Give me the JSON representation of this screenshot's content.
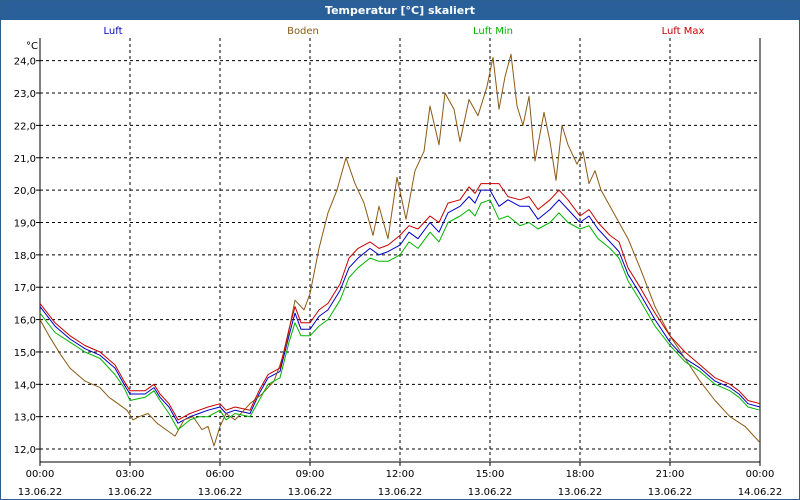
{
  "window": {
    "title": "Temperatur [°C] skaliert"
  },
  "chart_data": {
    "type": "line",
    "title": "Temperatur [°C] skaliert",
    "ylabel": "°C",
    "xlabel": "",
    "ylim": [
      11.6,
      24.7
    ],
    "xlim_hours": [
      0,
      24
    ],
    "grid": true,
    "y_ticks": [
      "12,0",
      "13,0",
      "14,0",
      "15,0",
      "16,0",
      "17,0",
      "18,0",
      "19,0",
      "20,0",
      "21,0",
      "22,0",
      "23,0",
      "24,0"
    ],
    "y_tick_values": [
      12,
      13,
      14,
      15,
      16,
      17,
      18,
      19,
      20,
      21,
      22,
      23,
      24
    ],
    "x_ticks": [
      {
        "hour": 0,
        "time": "00:00",
        "date": "13.06.22"
      },
      {
        "hour": 3,
        "time": "03:00",
        "date": "13.06.22"
      },
      {
        "hour": 6,
        "time": "06:00",
        "date": "13.06.22"
      },
      {
        "hour": 9,
        "time": "09:00",
        "date": "13.06.22"
      },
      {
        "hour": 12,
        "time": "12:00",
        "date": "13.06.22"
      },
      {
        "hour": 15,
        "time": "15:00",
        "date": "13.06.22"
      },
      {
        "hour": 18,
        "time": "18:00",
        "date": "13.06.22"
      },
      {
        "hour": 21,
        "time": "21:00",
        "date": "13.06.22"
      },
      {
        "hour": 24,
        "time": "00:00",
        "date": "14.06.22"
      }
    ],
    "series": [
      {
        "name": "Luft",
        "color": "#0000c8",
        "points": [
          [
            0,
            16.4
          ],
          [
            0.5,
            15.8
          ],
          [
            1,
            15.4
          ],
          [
            1.5,
            15.1
          ],
          [
            2,
            14.9
          ],
          [
            2.5,
            14.5
          ],
          [
            2.8,
            14.0
          ],
          [
            3,
            13.7
          ],
          [
            3.5,
            13.7
          ],
          [
            3.8,
            13.9
          ],
          [
            4,
            13.6
          ],
          [
            4.3,
            13.3
          ],
          [
            4.6,
            12.8
          ],
          [
            5,
            13.0
          ],
          [
            5.3,
            13.1
          ],
          [
            5.6,
            13.2
          ],
          [
            6,
            13.3
          ],
          [
            6.2,
            13.1
          ],
          [
            6.5,
            13.2
          ],
          [
            7,
            13.1
          ],
          [
            7.3,
            13.7
          ],
          [
            7.6,
            14.2
          ],
          [
            8,
            14.4
          ],
          [
            8.3,
            15.5
          ],
          [
            8.5,
            16.2
          ],
          [
            8.7,
            15.7
          ],
          [
            9,
            15.7
          ],
          [
            9.3,
            16.1
          ],
          [
            9.6,
            16.3
          ],
          [
            10,
            16.9
          ],
          [
            10.3,
            17.6
          ],
          [
            10.6,
            17.9
          ],
          [
            11,
            18.2
          ],
          [
            11.3,
            18.0
          ],
          [
            11.6,
            18.1
          ],
          [
            12,
            18.3
          ],
          [
            12.3,
            18.7
          ],
          [
            12.6,
            18.5
          ],
          [
            13,
            19.0
          ],
          [
            13.3,
            18.7
          ],
          [
            13.6,
            19.3
          ],
          [
            14,
            19.5
          ],
          [
            14.3,
            19.8
          ],
          [
            14.5,
            19.6
          ],
          [
            14.7,
            20.0
          ],
          [
            15,
            20.0
          ],
          [
            15.3,
            19.5
          ],
          [
            15.6,
            19.7
          ],
          [
            16,
            19.5
          ],
          [
            16.3,
            19.5
          ],
          [
            16.6,
            19.1
          ],
          [
            17,
            19.4
          ],
          [
            17.3,
            19.7
          ],
          [
            17.6,
            19.4
          ],
          [
            18,
            19.0
          ],
          [
            18.3,
            19.2
          ],
          [
            18.6,
            18.8
          ],
          [
            19,
            18.4
          ],
          [
            19.3,
            18.1
          ],
          [
            19.6,
            17.4
          ],
          [
            20,
            16.8
          ],
          [
            20.5,
            16.0
          ],
          [
            21,
            15.3
          ],
          [
            21.5,
            14.8
          ],
          [
            22,
            14.5
          ],
          [
            22.5,
            14.1
          ],
          [
            23,
            13.9
          ],
          [
            23.3,
            13.7
          ],
          [
            23.6,
            13.4
          ],
          [
            24,
            13.3
          ]
        ]
      },
      {
        "name": "Boden",
        "color": "#8c5a14",
        "points": [
          [
            0,
            16.0
          ],
          [
            0.3,
            15.5
          ],
          [
            0.7,
            14.9
          ],
          [
            1,
            14.5
          ],
          [
            1.5,
            14.1
          ],
          [
            2,
            13.9
          ],
          [
            2.3,
            13.6
          ],
          [
            2.6,
            13.4
          ],
          [
            2.9,
            13.2
          ],
          [
            3.1,
            12.9
          ],
          [
            3.3,
            13.0
          ],
          [
            3.6,
            13.1
          ],
          [
            3.9,
            12.8
          ],
          [
            4.2,
            12.6
          ],
          [
            4.5,
            12.4
          ],
          [
            4.8,
            12.9
          ],
          [
            5.1,
            13.0
          ],
          [
            5.4,
            12.6
          ],
          [
            5.6,
            12.7
          ],
          [
            5.8,
            12.1
          ],
          [
            6,
            12.7
          ],
          [
            6.2,
            13.1
          ],
          [
            6.5,
            12.9
          ],
          [
            6.8,
            13.2
          ],
          [
            7,
            13.4
          ],
          [
            7.4,
            13.7
          ],
          [
            7.8,
            14.1
          ],
          [
            8,
            14.6
          ],
          [
            8.2,
            15.2
          ],
          [
            8.5,
            16.6
          ],
          [
            8.8,
            16.3
          ],
          [
            9,
            16.8
          ],
          [
            9.3,
            18.2
          ],
          [
            9.6,
            19.3
          ],
          [
            9.9,
            20.0
          ],
          [
            10.2,
            21.0
          ],
          [
            10.5,
            20.2
          ],
          [
            10.8,
            19.6
          ],
          [
            11.1,
            18.6
          ],
          [
            11.3,
            19.5
          ],
          [
            11.6,
            18.5
          ],
          [
            11.9,
            20.4
          ],
          [
            12.2,
            19.1
          ],
          [
            12.5,
            20.6
          ],
          [
            12.8,
            21.2
          ],
          [
            13.0,
            22.6
          ],
          [
            13.3,
            21.4
          ],
          [
            13.5,
            23.0
          ],
          [
            13.8,
            22.5
          ],
          [
            14.0,
            21.5
          ],
          [
            14.3,
            22.8
          ],
          [
            14.6,
            22.3
          ],
          [
            14.9,
            23.2
          ],
          [
            15.1,
            24.1
          ],
          [
            15.3,
            22.5
          ],
          [
            15.5,
            23.5
          ],
          [
            15.7,
            24.2
          ],
          [
            15.9,
            22.6
          ],
          [
            16.1,
            22.0
          ],
          [
            16.3,
            22.9
          ],
          [
            16.5,
            20.9
          ],
          [
            16.8,
            22.4
          ],
          [
            17.0,
            21.5
          ],
          [
            17.2,
            20.3
          ],
          [
            17.4,
            22.0
          ],
          [
            17.6,
            21.4
          ],
          [
            17.9,
            20.8
          ],
          [
            18.1,
            21.2
          ],
          [
            18.3,
            20.2
          ],
          [
            18.5,
            20.6
          ],
          [
            18.7,
            20.0
          ],
          [
            19.0,
            19.5
          ],
          [
            19.3,
            19.0
          ],
          [
            19.6,
            18.5
          ],
          [
            20,
            17.6
          ],
          [
            20.5,
            16.4
          ],
          [
            21,
            15.5
          ],
          [
            21.5,
            14.8
          ],
          [
            22,
            14.1
          ],
          [
            22.5,
            13.5
          ],
          [
            23,
            13.0
          ],
          [
            23.5,
            12.7
          ],
          [
            24,
            12.2
          ]
        ]
      },
      {
        "name": "Luft Min",
        "color": "#00b400",
        "points": [
          [
            0,
            16.2
          ],
          [
            0.5,
            15.6
          ],
          [
            1,
            15.3
          ],
          [
            1.5,
            15.0
          ],
          [
            2,
            14.8
          ],
          [
            2.5,
            14.3
          ],
          [
            2.8,
            13.9
          ],
          [
            3,
            13.5
          ],
          [
            3.5,
            13.6
          ],
          [
            3.8,
            13.8
          ],
          [
            4,
            13.5
          ],
          [
            4.3,
            13.1
          ],
          [
            4.6,
            12.6
          ],
          [
            5,
            12.9
          ],
          [
            5.3,
            13.0
          ],
          [
            5.6,
            13.0
          ],
          [
            6,
            13.2
          ],
          [
            6.2,
            12.9
          ],
          [
            6.5,
            13.1
          ],
          [
            7,
            13.0
          ],
          [
            7.3,
            13.5
          ],
          [
            7.6,
            14.0
          ],
          [
            8,
            14.2
          ],
          [
            8.3,
            15.3
          ],
          [
            8.5,
            15.9
          ],
          [
            8.7,
            15.5
          ],
          [
            9,
            15.5
          ],
          [
            9.3,
            15.8
          ],
          [
            9.6,
            16.0
          ],
          [
            10,
            16.6
          ],
          [
            10.3,
            17.3
          ],
          [
            10.6,
            17.6
          ],
          [
            11,
            17.9
          ],
          [
            11.3,
            17.8
          ],
          [
            11.6,
            17.8
          ],
          [
            12,
            18.0
          ],
          [
            12.3,
            18.4
          ],
          [
            12.6,
            18.2
          ],
          [
            13,
            18.7
          ],
          [
            13.3,
            18.4
          ],
          [
            13.6,
            19.0
          ],
          [
            14,
            19.2
          ],
          [
            14.3,
            19.4
          ],
          [
            14.5,
            19.2
          ],
          [
            14.7,
            19.6
          ],
          [
            15,
            19.7
          ],
          [
            15.3,
            19.1
          ],
          [
            15.6,
            19.2
          ],
          [
            16,
            18.9
          ],
          [
            16.3,
            19.0
          ],
          [
            16.6,
            18.8
          ],
          [
            17,
            19.0
          ],
          [
            17.3,
            19.3
          ],
          [
            17.6,
            19.0
          ],
          [
            18,
            18.8
          ],
          [
            18.3,
            18.9
          ],
          [
            18.6,
            18.5
          ],
          [
            19,
            18.2
          ],
          [
            19.3,
            17.9
          ],
          [
            19.6,
            17.2
          ],
          [
            20,
            16.6
          ],
          [
            20.5,
            15.8
          ],
          [
            21,
            15.2
          ],
          [
            21.5,
            14.7
          ],
          [
            22,
            14.4
          ],
          [
            22.5,
            14.0
          ],
          [
            23,
            13.8
          ],
          [
            23.3,
            13.6
          ],
          [
            23.6,
            13.3
          ],
          [
            24,
            13.2
          ]
        ]
      },
      {
        "name": "Luft Max",
        "color": "#c80000",
        "points": [
          [
            0,
            16.5
          ],
          [
            0.5,
            15.9
          ],
          [
            1,
            15.5
          ],
          [
            1.5,
            15.2
          ],
          [
            2,
            15.0
          ],
          [
            2.5,
            14.6
          ],
          [
            2.8,
            14.1
          ],
          [
            3,
            13.8
          ],
          [
            3.5,
            13.8
          ],
          [
            3.8,
            14.0
          ],
          [
            4,
            13.7
          ],
          [
            4.3,
            13.4
          ],
          [
            4.6,
            12.9
          ],
          [
            5,
            13.1
          ],
          [
            5.3,
            13.2
          ],
          [
            5.6,
            13.3
          ],
          [
            6,
            13.4
          ],
          [
            6.2,
            13.2
          ],
          [
            6.5,
            13.3
          ],
          [
            7,
            13.2
          ],
          [
            7.3,
            13.8
          ],
          [
            7.6,
            14.3
          ],
          [
            8,
            14.5
          ],
          [
            8.3,
            15.7
          ],
          [
            8.5,
            16.4
          ],
          [
            8.7,
            15.9
          ],
          [
            9,
            15.9
          ],
          [
            9.3,
            16.3
          ],
          [
            9.6,
            16.5
          ],
          [
            10,
            17.1
          ],
          [
            10.3,
            17.9
          ],
          [
            10.6,
            18.2
          ],
          [
            11,
            18.4
          ],
          [
            11.3,
            18.2
          ],
          [
            11.6,
            18.3
          ],
          [
            12,
            18.6
          ],
          [
            12.3,
            18.9
          ],
          [
            12.6,
            18.8
          ],
          [
            13,
            19.2
          ],
          [
            13.3,
            19.0
          ],
          [
            13.6,
            19.6
          ],
          [
            14,
            19.7
          ],
          [
            14.3,
            20.1
          ],
          [
            14.5,
            19.9
          ],
          [
            14.7,
            20.2
          ],
          [
            15,
            20.2
          ],
          [
            15.3,
            20.2
          ],
          [
            15.6,
            19.8
          ],
          [
            16,
            19.7
          ],
          [
            16.3,
            19.8
          ],
          [
            16.6,
            19.4
          ],
          [
            17,
            19.7
          ],
          [
            17.3,
            20.0
          ],
          [
            17.6,
            19.7
          ],
          [
            18,
            19.2
          ],
          [
            18.3,
            19.4
          ],
          [
            18.6,
            19.0
          ],
          [
            19,
            18.6
          ],
          [
            19.3,
            18.4
          ],
          [
            19.6,
            17.6
          ],
          [
            20,
            17.0
          ],
          [
            20.5,
            16.2
          ],
          [
            21,
            15.5
          ],
          [
            21.5,
            15.0
          ],
          [
            22,
            14.6
          ],
          [
            22.5,
            14.2
          ],
          [
            23,
            14.0
          ],
          [
            23.3,
            13.8
          ],
          [
            23.6,
            13.5
          ],
          [
            24,
            13.4
          ]
        ]
      }
    ]
  }
}
